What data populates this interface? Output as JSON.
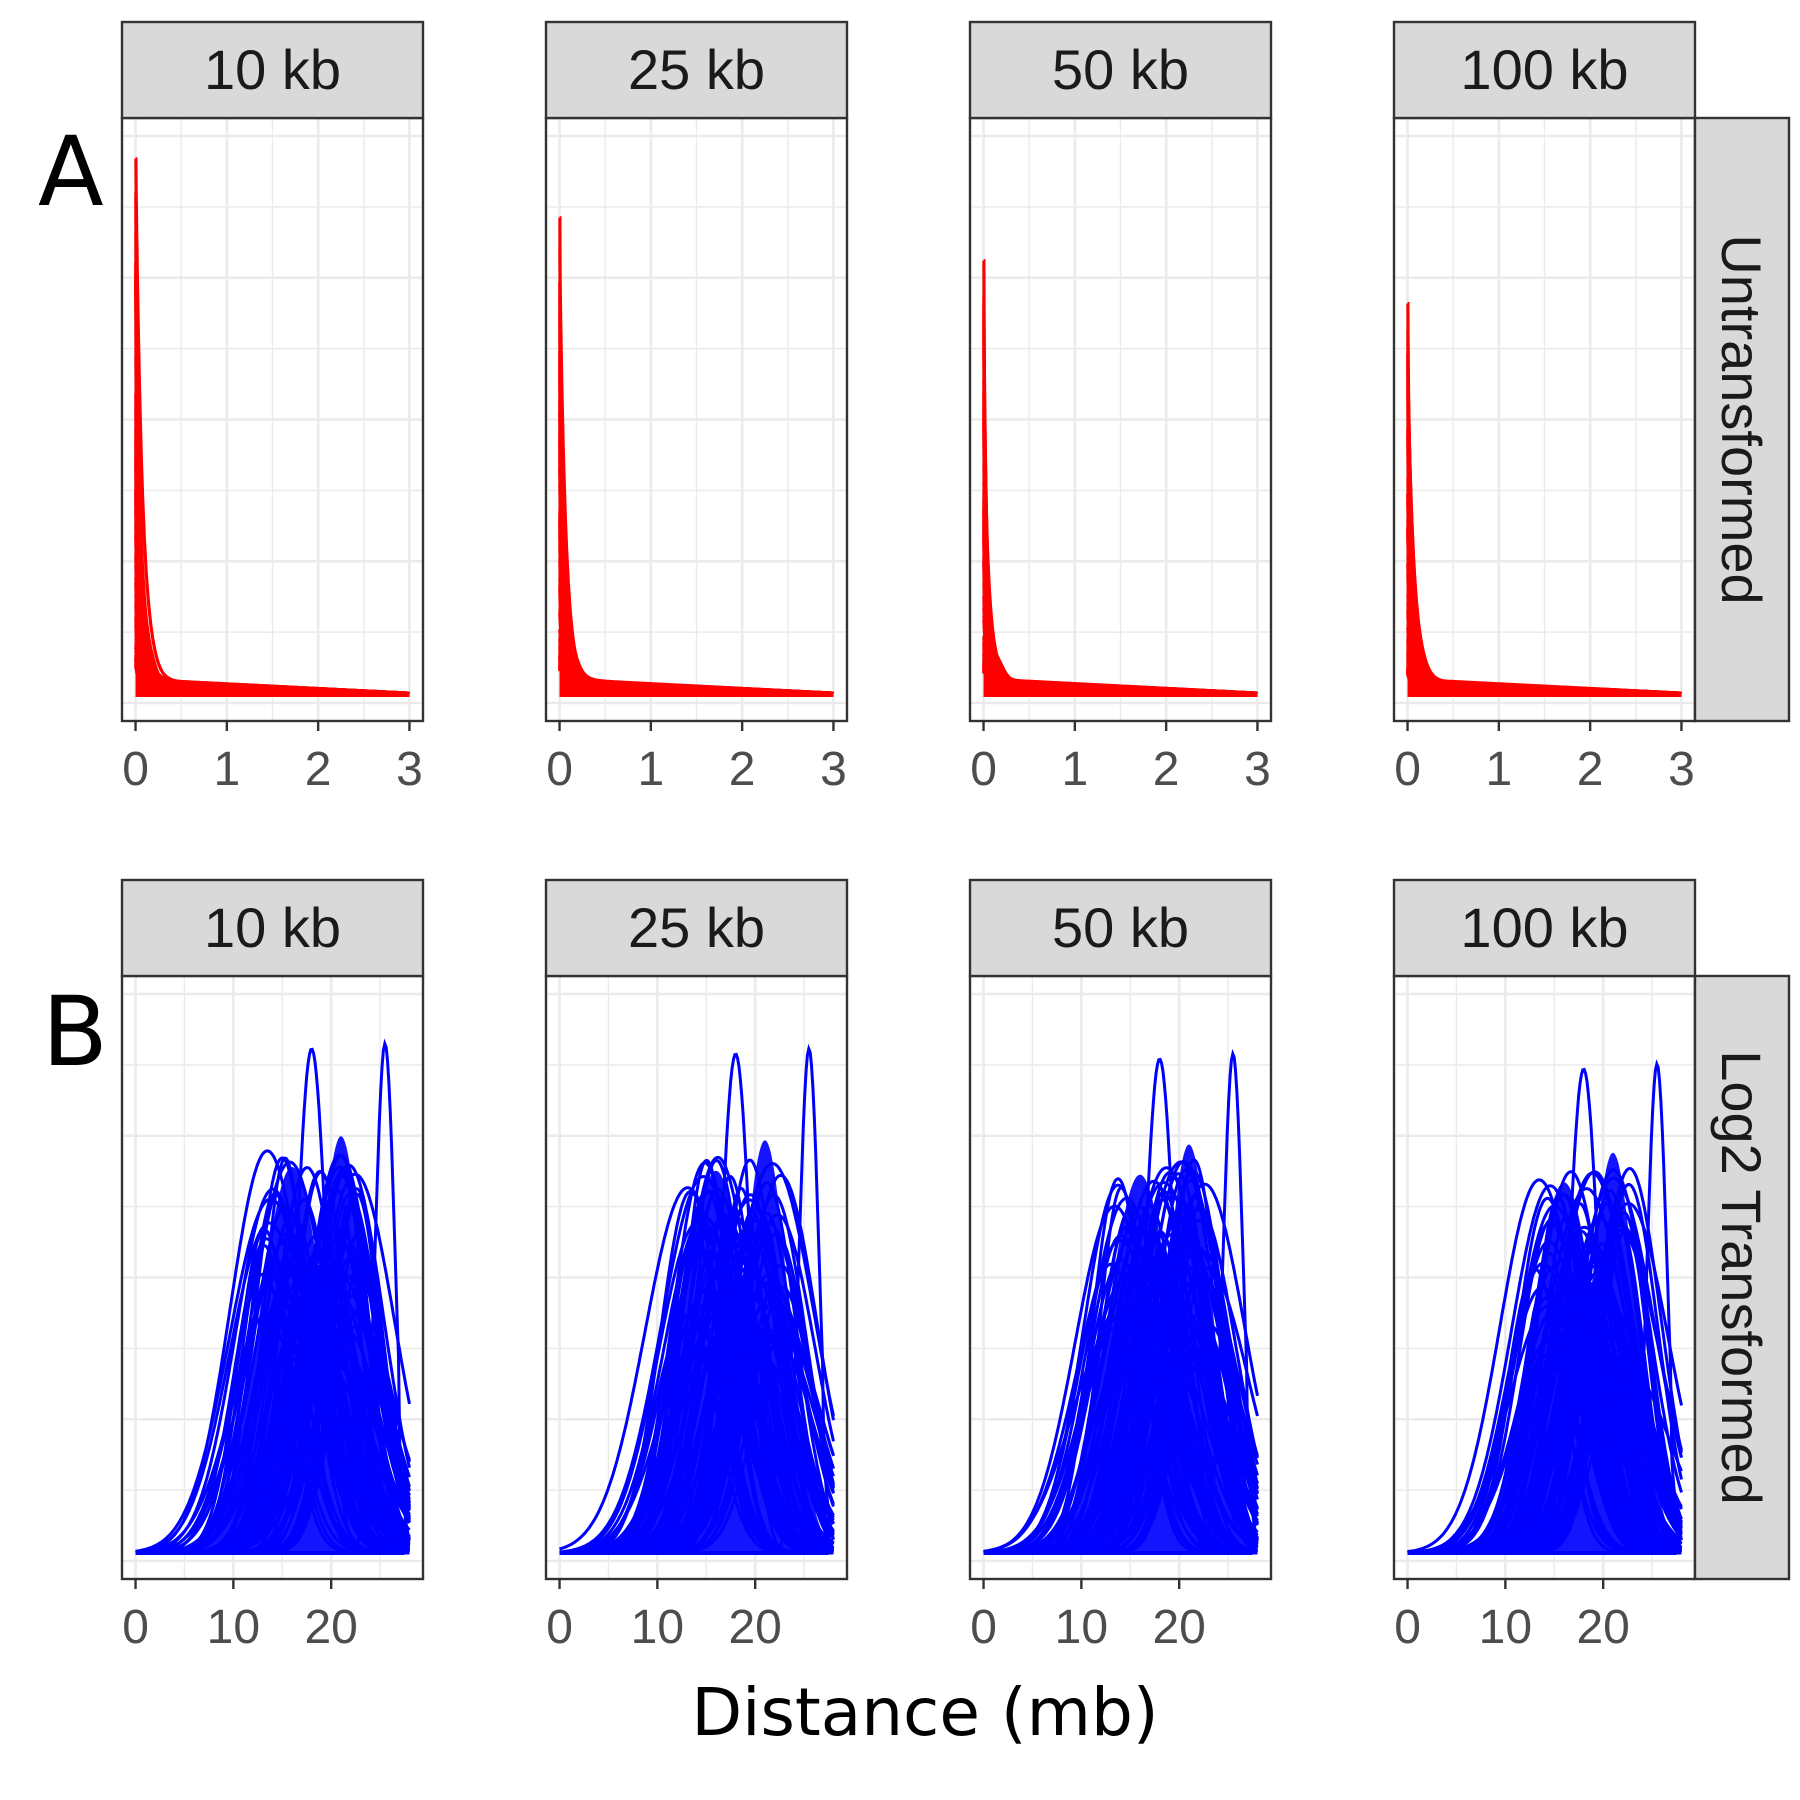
{
  "figure": {
    "xlabel": "Distance (mb)",
    "panel_labels": [
      "A",
      "B"
    ]
  },
  "colors": {
    "untransformed": "#ff0000",
    "log2": "#0000ff",
    "strip_bg": "#d9d9d9",
    "grid": "#ebebeb",
    "frame": "#333333"
  },
  "chart_data": [
    {
      "type": "line",
      "row_label": "Untransformed",
      "facets": [
        "10 kb",
        "25 kb",
        "50 kb",
        "100 kb"
      ],
      "xlabel": "Distance (mb)",
      "xlim": [
        0,
        3
      ],
      "xticks": [
        0,
        1,
        2,
        3
      ],
      "peak_heights": [
        1.0,
        0.89,
        0.81,
        0.73
      ],
      "ylim": [
        0,
        1.05
      ],
      "description_of_series": "many overlapping density curves (hundreds) decaying from a sharp peak at 0",
      "series_shape": {
        "peak_x": 0,
        "secondary_bump_x": 0.15,
        "tail_value": 0.03
      }
    },
    {
      "type": "line",
      "row_label": "Log2 Transformed",
      "facets": [
        "10 kb",
        "25 kb",
        "50 kb",
        "100 kb"
      ],
      "xlabel": "Distance (mb)",
      "xlim": [
        0,
        28
      ],
      "xticks": [
        0,
        10,
        20
      ],
      "peak_heights": [
        1.0,
        0.99,
        0.98,
        0.96
      ],
      "ylim": [
        0,
        1.05
      ],
      "series_shape": {
        "main_peak_x": 18,
        "main_peak_y": 0.94,
        "right_peak_x": 25.5,
        "right_peak_y": 0.95,
        "tail_drop_x": 27
      }
    }
  ]
}
